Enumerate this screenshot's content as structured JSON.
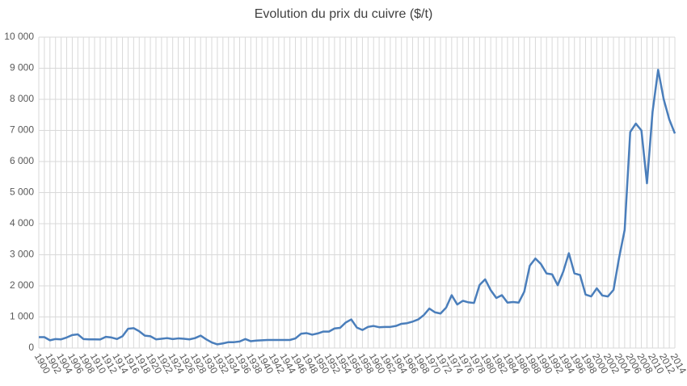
{
  "chart_data": {
    "type": "line",
    "title": "Evolution du prix du cuivre ($/t)",
    "x": [
      1900,
      1901,
      1902,
      1903,
      1904,
      1905,
      1906,
      1907,
      1908,
      1909,
      1910,
      1911,
      1912,
      1913,
      1914,
      1915,
      1916,
      1917,
      1918,
      1919,
      1920,
      1921,
      1922,
      1923,
      1924,
      1925,
      1926,
      1927,
      1928,
      1929,
      1930,
      1931,
      1932,
      1933,
      1934,
      1935,
      1936,
      1937,
      1938,
      1939,
      1940,
      1941,
      1942,
      1943,
      1944,
      1945,
      1946,
      1947,
      1948,
      1949,
      1950,
      1951,
      1952,
      1953,
      1954,
      1955,
      1956,
      1957,
      1958,
      1959,
      1960,
      1961,
      1962,
      1963,
      1964,
      1965,
      1966,
      1967,
      1968,
      1969,
      1970,
      1971,
      1972,
      1973,
      1974,
      1975,
      1976,
      1977,
      1978,
      1979,
      1980,
      1981,
      1982,
      1983,
      1984,
      1985,
      1986,
      1987,
      1988,
      1989,
      1990,
      1991,
      1992,
      1993,
      1994,
      1995,
      1996,
      1997,
      1998,
      1999,
      2000,
      2001,
      2002,
      2003,
      2004,
      2005,
      2006,
      2007,
      2008,
      2009,
      2010,
      2011,
      2012,
      2013,
      2014
    ],
    "values": [
      350,
      350,
      250,
      290,
      280,
      340,
      420,
      440,
      290,
      280,
      280,
      275,
      360,
      340,
      290,
      380,
      620,
      640,
      540,
      400,
      380,
      280,
      300,
      320,
      290,
      310,
      300,
      280,
      320,
      400,
      280,
      180,
      120,
      150,
      190,
      190,
      210,
      290,
      220,
      240,
      250,
      260,
      260,
      260,
      260,
      260,
      310,
      460,
      480,
      430,
      470,
      530,
      530,
      630,
      650,
      820,
      920,
      660,
      580,
      680,
      710,
      670,
      680,
      680,
      710,
      780,
      800,
      850,
      920,
      1060,
      1270,
      1150,
      1110,
      1300,
      1700,
      1400,
      1520,
      1470,
      1450,
      2030,
      2210,
      1860,
      1610,
      1700,
      1460,
      1480,
      1460,
      1810,
      2650,
      2880,
      2700,
      2400,
      2370,
      2020,
      2460,
      3050,
      2400,
      2350,
      1720,
      1660,
      1920,
      1690,
      1660,
      1870,
      2900,
      3800,
      6950,
      7220,
      7000,
      5300,
      7600,
      8950,
      8000,
      7350,
      6900
    ],
    "color": "#4a7ebb",
    "xlim": [
      1900,
      2014
    ],
    "xticks": [
      1900,
      1902,
      1904,
      1906,
      1908,
      1910,
      1912,
      1914,
      1916,
      1918,
      1920,
      1922,
      1924,
      1926,
      1928,
      1930,
      1932,
      1934,
      1936,
      1938,
      1940,
      1942,
      1944,
      1946,
      1948,
      1950,
      1952,
      1954,
      1956,
      1958,
      1960,
      1962,
      1964,
      1966,
      1968,
      1970,
      1972,
      1974,
      1976,
      1978,
      1980,
      1982,
      1984,
      1986,
      1988,
      1990,
      1992,
      1994,
      1996,
      1998,
      2000,
      2002,
      2004,
      2006,
      2008,
      2010,
      2012,
      2014
    ],
    "ylim": [
      0,
      10000
    ],
    "yticks": [
      0,
      {
        "value": 1000,
        "label": "1 000"
      },
      {
        "value": 2000,
        "label": "2 000"
      },
      {
        "value": 3000,
        "label": "3 000"
      },
      {
        "value": 4000,
        "label": "4 000"
      },
      {
        "value": 5000,
        "label": "5 000"
      },
      {
        "value": 6000,
        "label": "6 000"
      },
      {
        "value": 7000,
        "label": "7 000"
      },
      {
        "value": 8000,
        "label": "8 000"
      },
      {
        "value": 9000,
        "label": "9 000"
      },
      {
        "value": 10000,
        "label": "10 000"
      }
    ],
    "grid": true
  }
}
